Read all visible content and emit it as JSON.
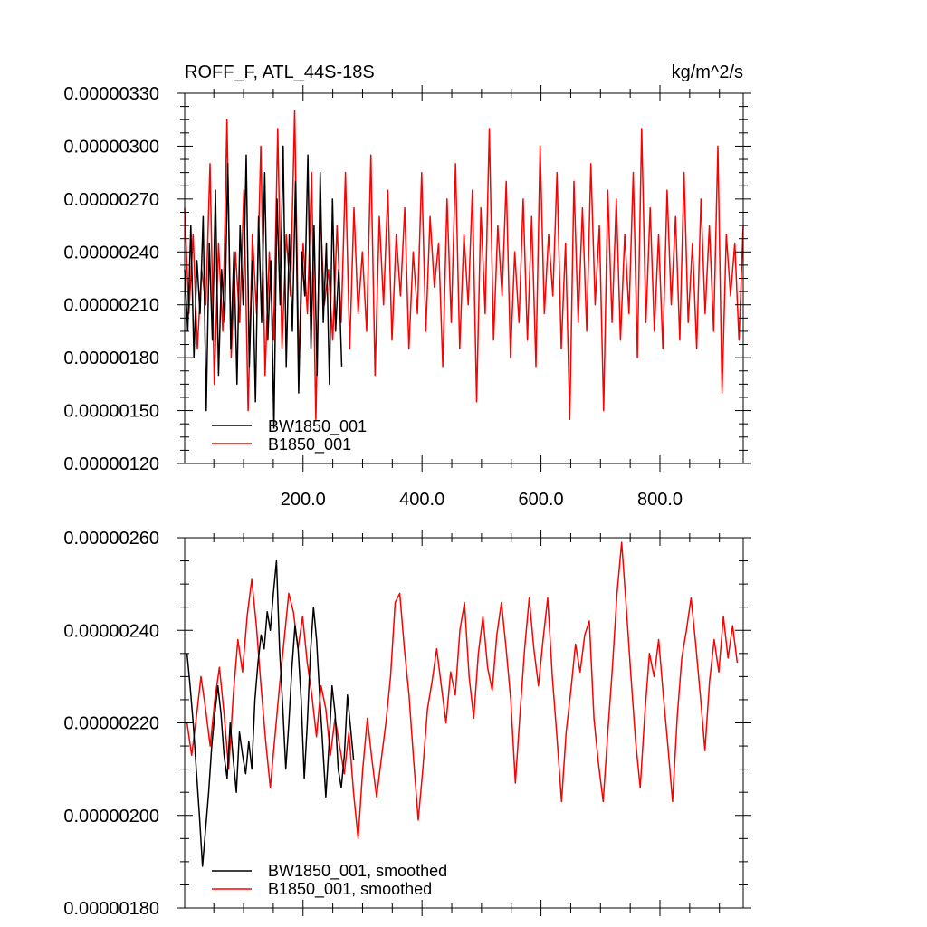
{
  "chart_data": [
    {
      "type": "line",
      "title_left": "ROFF_F, ATL_44S-18S",
      "title_right": "kg/m^2/s",
      "xlim": [
        1,
        940
      ],
      "ylim": [
        1.2e-06,
        3.3e-06
      ],
      "x_ticks": [
        200,
        400,
        600,
        800
      ],
      "x_tick_labels": [
        "200.0",
        "400.0",
        "600.0",
        "800.0"
      ],
      "y_ticks": [
        1.2e-06,
        1.5e-06,
        1.8e-06,
        2.1e-06,
        2.4e-06,
        2.7e-06,
        3e-06,
        3.3e-06
      ],
      "y_tick_labels": [
        "0.00000120",
        "0.00000150",
        "0.00000180",
        "0.00000210",
        "0.00000240",
        "0.00000270",
        "0.00000300",
        "0.00000330"
      ],
      "legend": {
        "placement": "bottom-left",
        "entries": [
          "BW1850_001",
          "B1850_001"
        ]
      },
      "series": [
        {
          "name": "BW1850_001",
          "color": "#000000",
          "x_range": [
            1,
            265
          ],
          "values": [
            2.3e-06,
            1.95e-06,
            2.55e-06,
            1.8e-06,
            2.35e-06,
            2.05e-06,
            2.6e-06,
            1.5e-06,
            2.45e-06,
            1.9e-06,
            2.75e-06,
            1.7e-06,
            2.3e-06,
            2e-06,
            2.9e-06,
            1.85e-06,
            2.4e-06,
            1.65e-06,
            2.55e-06,
            2.1e-06,
            2.95e-06,
            1.75e-06,
            2.35e-06,
            1.55e-06,
            2.6e-06,
            2e-06,
            2.85e-06,
            1.9e-06,
            2.35e-06,
            1.4e-06,
            2.7e-06,
            2.1e-06,
            3e-06,
            1.75e-06,
            2.5e-06,
            1.95e-06,
            2.8e-06,
            1.6e-06,
            2.4e-06,
            2.15e-06,
            2.95e-06,
            1.85e-06,
            2.55e-06,
            1.7e-06,
            2.85e-06,
            2e-06,
            2.45e-06,
            1.65e-06,
            2.7e-06,
            1.95e-06,
            2.3e-06,
            1.75e-06
          ]
        },
        {
          "name": "B1850_001",
          "color": "#ff0000",
          "x_range": [
            1,
            940
          ],
          "values": [
            2.65e-06,
            2.05e-06,
            2.5e-06,
            1.85e-06,
            2.3e-06,
            2.1e-06,
            2.9e-06,
            1.65e-06,
            2.45e-06,
            1.95e-06,
            3.15e-06,
            1.8e-06,
            2.4e-06,
            2e-06,
            2.75e-06,
            1.5e-06,
            2.5e-06,
            2.05e-06,
            3e-06,
            1.7e-06,
            2.4e-06,
            1.9e-06,
            3.1e-06,
            1.85e-06,
            2.5e-06,
            2.15e-06,
            3.2e-06,
            1.75e-06,
            2.45e-06,
            2.05e-06,
            2.85e-06,
            1.45e-06,
            2.65e-06,
            2.1e-06,
            2.3e-06,
            1.9e-06,
            2.55e-06,
            2e-06,
            2.85e-06,
            1.85e-06,
            2.65e-06,
            2.05e-06,
            2.4e-06,
            1.95e-06,
            2.95e-06,
            1.7e-06,
            2.6e-06,
            2.1e-06,
            2.75e-06,
            1.9e-06,
            2.5e-06,
            2.15e-06,
            2.65e-06,
            1.85e-06,
            2.4e-06,
            2.05e-06,
            2.85e-06,
            1.95e-06,
            2.6e-06,
            2.2e-06,
            2.45e-06,
            1.75e-06,
            2.7e-06,
            2e-06,
            2.9e-06,
            1.85e-06,
            2.5e-06,
            2.1e-06,
            2.75e-06,
            1.55e-06,
            2.65e-06,
            2.05e-06,
            3.1e-06,
            1.9e-06,
            2.55e-06,
            2.15e-06,
            2.8e-06,
            1.8e-06,
            2.4e-06,
            2e-06,
            2.7e-06,
            1.9e-06,
            2.6e-06,
            1.75e-06,
            3e-06,
            2.05e-06,
            2.5e-06,
            2.15e-06,
            2.85e-06,
            1.85e-06,
            2.45e-06,
            1.45e-06,
            2.8e-06,
            2e-06,
            2.65e-06,
            1.95e-06,
            2.9e-06,
            2.1e-06,
            2.55e-06,
            1.5e-06,
            2.75e-06,
            2e-06,
            2.7e-06,
            1.9e-06,
            2.5e-06,
            2.05e-06,
            2.85e-06,
            1.8e-06,
            3.1e-06,
            2e-06,
            2.65e-06,
            1.95e-06,
            2.5e-06,
            1.85e-06,
            2.75e-06,
            2.1e-06,
            2.6e-06,
            1.9e-06,
            2.85e-06,
            2e-06,
            2.45e-06,
            1.85e-06,
            2.7e-06,
            2.05e-06,
            2.55e-06,
            1.95e-06,
            3e-06,
            1.6e-06,
            2.5e-06,
            2.15e-06,
            2.45e-06,
            1.9e-06,
            2.55e-06
          ]
        }
      ]
    },
    {
      "type": "line",
      "xlim": [
        1,
        940
      ],
      "ylim": [
        1.8e-06,
        2.6e-06
      ],
      "x_ticks": [
        200,
        400,
        600,
        800
      ],
      "y_ticks": [
        1.8e-06,
        2e-06,
        2.2e-06,
        2.4e-06,
        2.6e-06
      ],
      "y_tick_labels": [
        "0.00000180",
        "0.00000200",
        "0.00000220",
        "0.00000240",
        "0.00000260"
      ],
      "legend": {
        "placement": "bottom-left",
        "entries": [
          "BW1850_001, smoothed",
          "B1850_001, smoothed"
        ]
      },
      "series": [
        {
          "name": "BW1850_001, smoothed",
          "color": "#000000",
          "x_range": [
            5,
            285
          ],
          "values": [
            2.35e-06,
            2.28e-06,
            2.2e-06,
            2.1e-06,
            2e-06,
            1.89e-06,
            1.97e-06,
            2.05e-06,
            2.15e-06,
            2.22e-06,
            2.28e-06,
            2.22e-06,
            2.13e-06,
            2.08e-06,
            2.2e-06,
            2.12e-06,
            2.05e-06,
            2.18e-06,
            2.13e-06,
            2.09e-06,
            2.16e-06,
            2.1e-06,
            2.25e-06,
            2.33e-06,
            2.39e-06,
            2.36e-06,
            2.44e-06,
            2.4e-06,
            2.48e-06,
            2.55e-06,
            2.36e-06,
            2.24e-06,
            2.1e-06,
            2.2e-06,
            2.32e-06,
            2.41e-06,
            2.36e-06,
            2.25e-06,
            2.08e-06,
            2.2e-06,
            2.35e-06,
            2.45e-06,
            2.38e-06,
            2.26e-06,
            2.15e-06,
            2.04e-06,
            2.15e-06,
            2.28e-06,
            2.22e-06,
            2.1e-06,
            2.06e-06,
            2.13e-06,
            2.26e-06,
            2.19e-06,
            2.12e-06
          ]
        },
        {
          "name": "B1850_001, smoothed",
          "color": "#ff0000",
          "x_range": [
            5,
            930
          ],
          "values": [
            2.2e-06,
            2.13e-06,
            2.21e-06,
            2.3e-06,
            2.23e-06,
            2.15e-06,
            2.25e-06,
            2.32e-06,
            2.22e-06,
            2.1e-06,
            2.26e-06,
            2.38e-06,
            2.31e-06,
            2.43e-06,
            2.51e-06,
            2.41e-06,
            2.28e-06,
            2.16e-06,
            2.06e-06,
            2.17e-06,
            2.28e-06,
            2.38e-06,
            2.48e-06,
            2.44e-06,
            2.36e-06,
            2.43e-06,
            2.33e-06,
            2.26e-06,
            2.17e-06,
            2.28e-06,
            2.23e-06,
            2.13e-06,
            2.21e-06,
            2.15e-06,
            2.09e-06,
            2.18e-06,
            2.05e-06,
            1.95e-06,
            2.1e-06,
            2.21e-06,
            2.12e-06,
            2.04e-06,
            2.12e-06,
            2.2e-06,
            2.3e-06,
            2.46e-06,
            2.48e-06,
            2.36e-06,
            2.26e-06,
            2.12e-06,
            1.99e-06,
            2.1e-06,
            2.23e-06,
            2.29e-06,
            2.36e-06,
            2.28e-06,
            2.2e-06,
            2.31e-06,
            2.26e-06,
            2.4e-06,
            2.46e-06,
            2.3e-06,
            2.21e-06,
            2.35e-06,
            2.43e-06,
            2.32e-06,
            2.27e-06,
            2.39e-06,
            2.46e-06,
            2.36e-06,
            2.25e-06,
            2.07e-06,
            2.22e-06,
            2.36e-06,
            2.47e-06,
            2.36e-06,
            2.28e-06,
            2.38e-06,
            2.47e-06,
            2.3e-06,
            2.17e-06,
            2.03e-06,
            2.18e-06,
            2.27e-06,
            2.37e-06,
            2.31e-06,
            2.39e-06,
            2.42e-06,
            2.21e-06,
            2.11e-06,
            2.03e-06,
            2.18e-06,
            2.32e-06,
            2.48e-06,
            2.59e-06,
            2.45e-06,
            2.3e-06,
            2.16e-06,
            2.06e-06,
            2.22e-06,
            2.35e-06,
            2.3e-06,
            2.38e-06,
            2.26e-06,
            2.15e-06,
            2.03e-06,
            2.21e-06,
            2.34e-06,
            2.4e-06,
            2.47e-06,
            2.37e-06,
            2.26e-06,
            2.14e-06,
            2.29e-06,
            2.38e-06,
            2.31e-06,
            2.43e-06,
            2.34e-06,
            2.41e-06,
            2.33e-06
          ]
        }
      ]
    }
  ]
}
